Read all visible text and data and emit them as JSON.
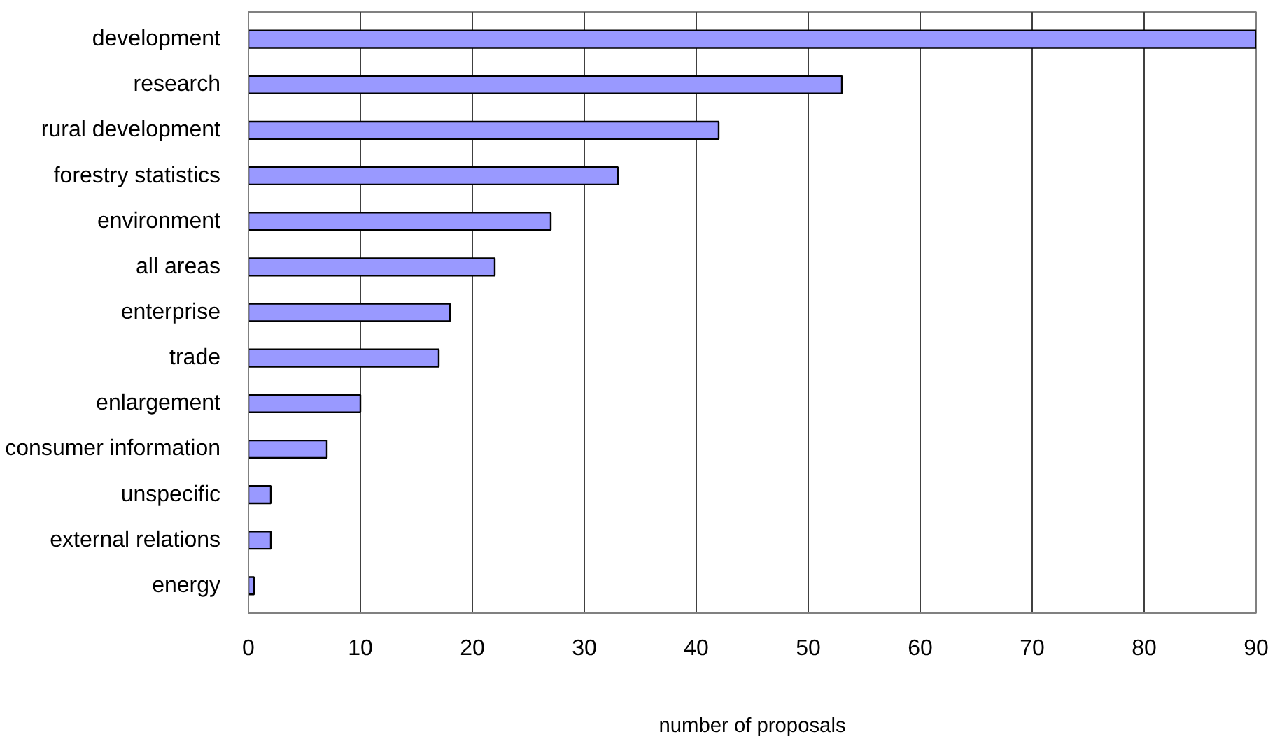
{
  "chart_data": {
    "type": "bar",
    "orientation": "horizontal",
    "xlabel": "number of proposals",
    "categories": [
      "development",
      "research",
      "rural development",
      "forestry statistics",
      "environment",
      "all areas",
      "enterprise",
      "trade",
      "enlargement",
      "consumer information",
      "unspecific",
      "external relations",
      "energy"
    ],
    "values": [
      90,
      53,
      42,
      33,
      27,
      22,
      18,
      17,
      10,
      7,
      2,
      2,
      0.5
    ],
    "color": "#9999ff",
    "xlim": [
      0,
      90
    ],
    "xticks": [
      0,
      10,
      20,
      30,
      40,
      50,
      60,
      70,
      80,
      90
    ],
    "grid": "x"
  }
}
